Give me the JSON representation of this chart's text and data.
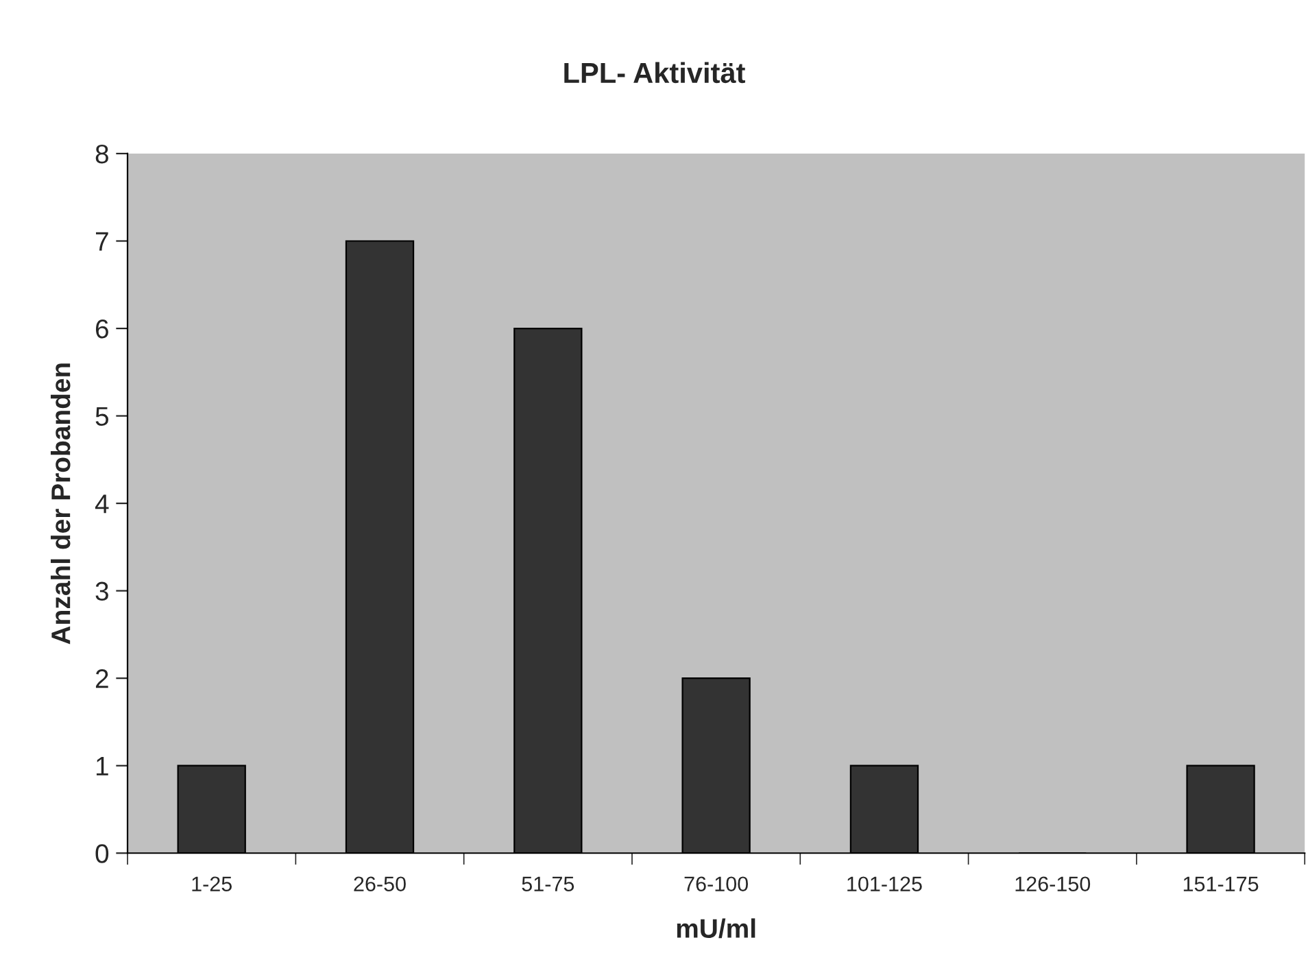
{
  "chart_data": {
    "type": "bar",
    "title": "LPL- Aktivität",
    "xlabel": "mU/ml",
    "ylabel": "Anzahl der Probanden",
    "categories": [
      "1-25",
      "26-50",
      "51-75",
      "76-100",
      "101-125",
      "126-150",
      "151-175"
    ],
    "values": [
      1,
      7,
      6,
      2,
      1,
      0,
      1
    ],
    "color": "#333333",
    "ylim": [
      0,
      8
    ],
    "yticks": [
      0,
      1,
      2,
      3,
      4,
      5,
      6,
      7,
      8
    ],
    "grid": false,
    "legend": false
  }
}
